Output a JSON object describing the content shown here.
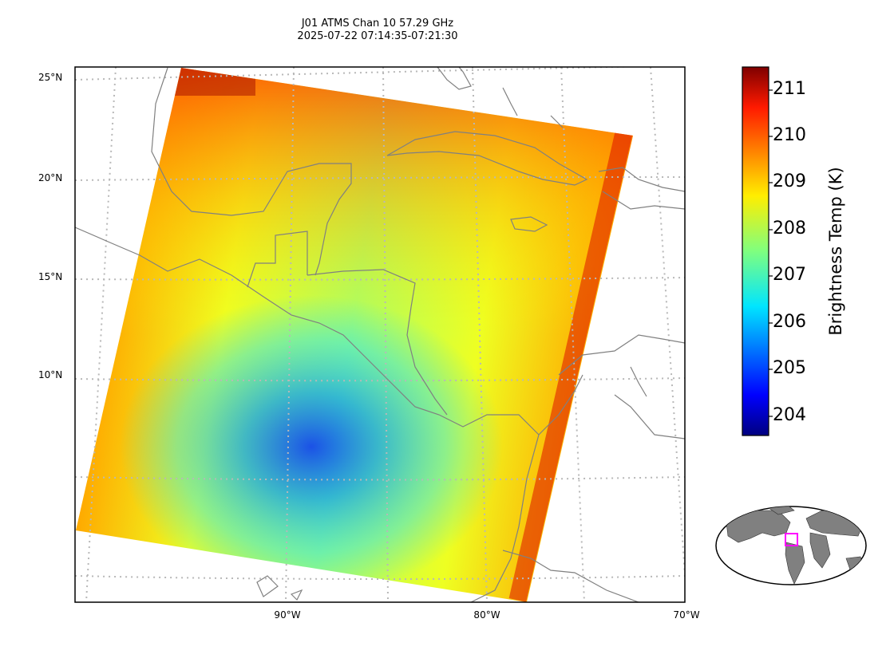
{
  "title": {
    "line1": "J01 ATMS Chan 10 57.29 GHz",
    "line2": "2025-07-22 07:14:35-07:21:30"
  },
  "map": {
    "lat_labels": [
      "25°N",
      "20°N",
      "15°N",
      "10°N"
    ],
    "lon_labels": [
      "90°W",
      "80°W",
      "70°W"
    ],
    "gridline_style": "dotted grey",
    "coastline_color": "#808080"
  },
  "colorbar": {
    "label": "Brightness Temp (K)",
    "ticks": [
      "211",
      "210",
      "209",
      "208",
      "207",
      "206",
      "205",
      "204"
    ],
    "colormap": "jet",
    "range": [
      203.6,
      211.5
    ]
  },
  "inset": {
    "description_color": "#ff00ff"
  }
}
